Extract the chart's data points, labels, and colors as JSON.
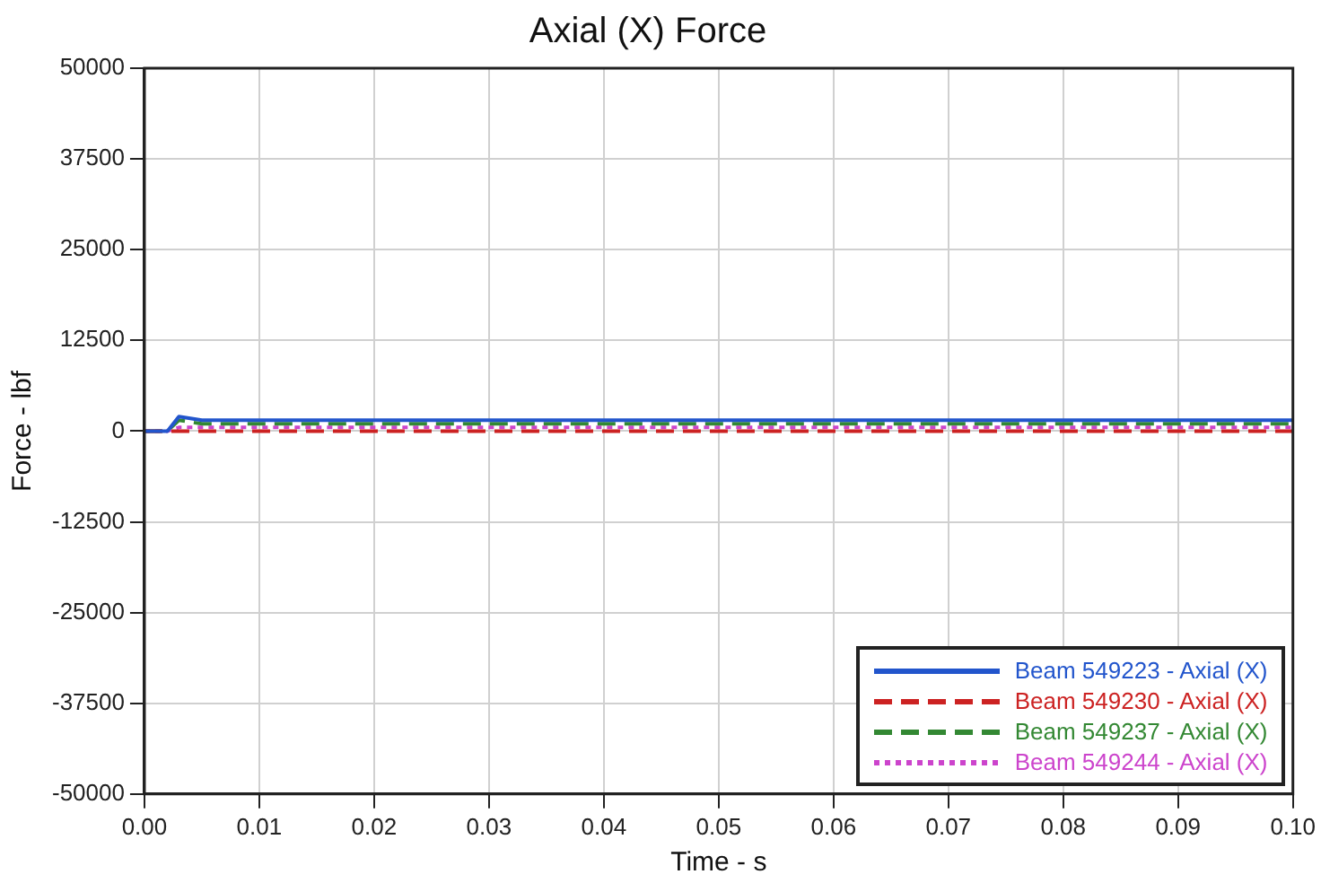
{
  "chart_data": {
    "type": "line",
    "title": "Axial (X) Force",
    "xlabel": "Time - s",
    "ylabel": "Force - lbf",
    "x": [
      0,
      0.002,
      0.003,
      0.005,
      0.01,
      0.015,
      0.02,
      0.03,
      0.04,
      0.05,
      0.06,
      0.07,
      0.08,
      0.09,
      0.1
    ],
    "series": [
      {
        "name": "Beam 549223 - Axial (X)",
        "color": "#2255cc",
        "line_style": "solid",
        "values": [
          0,
          0,
          2000,
          1500,
          1500,
          1500,
          1500,
          1500,
          1500,
          1500,
          1500,
          1500,
          1500,
          1500,
          1500
        ]
      },
      {
        "name": "Beam 549230 - Axial (X)",
        "color": "#cc2222",
        "line_style": "dashed",
        "values": [
          0,
          0,
          0,
          0,
          0,
          0,
          0,
          0,
          0,
          0,
          0,
          0,
          0,
          0,
          0
        ]
      },
      {
        "name": "Beam 549237 - Axial (X)",
        "color": "#338833",
        "line_style": "dashed",
        "values": [
          0,
          0,
          1500,
          1000,
          1000,
          1000,
          1000,
          1000,
          1000,
          1000,
          1000,
          1000,
          1000,
          1000,
          1000
        ]
      },
      {
        "name": "Beam 549244 - Axial (X)",
        "color": "#cc44cc",
        "line_style": "dotted",
        "values": [
          0,
          0,
          500,
          500,
          500,
          500,
          500,
          500,
          500,
          500,
          500,
          500,
          500,
          500,
          500
        ]
      }
    ],
    "xlim": [
      0,
      0.1
    ],
    "xticks": [
      {
        "value": 0,
        "label": "0.00"
      },
      {
        "value": 0.01,
        "label": "0.01"
      },
      {
        "value": 0.02,
        "label": "0.02"
      },
      {
        "value": 0.03,
        "label": "0.03"
      },
      {
        "value": 0.04,
        "label": "0.04"
      },
      {
        "value": 0.05,
        "label": "0.05"
      },
      {
        "value": 0.06,
        "label": "0.06"
      },
      {
        "value": 0.07,
        "label": "0.07"
      },
      {
        "value": 0.08,
        "label": "0.08"
      },
      {
        "value": 0.09,
        "label": "0.09"
      },
      {
        "value": 0.1,
        "label": "0.10"
      }
    ],
    "ylim": [
      -50000,
      50000
    ],
    "yticks": [
      -50000,
      -37500,
      -25000,
      -12500,
      0,
      12500,
      25000,
      37500,
      50000
    ],
    "grid": true,
    "legend": "bottom right",
    "marker": "none"
  }
}
